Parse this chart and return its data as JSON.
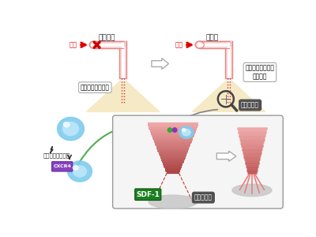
{
  "bg_color": "#ffffff",
  "text_blood_occlusion": "血管閉塞",
  "text_reperfusion": "再灘流",
  "text_blood_flow": "血流",
  "text_fine_vessel_damage": "細かい血管の障害",
  "text_fine_vessel_continued": "細かい血管が持続\nして障害",
  "text_hypoxia_region": "低酸素領域",
  "text_hypoxia_stimulus": "低酸素・低體刺激",
  "text_cxcr4": "CXCR4",
  "text_sdf1": "SDF-1",
  "vessel_color": "#e88080",
  "vessel_fill": "#f5c0c0",
  "vessel_inner": "#ffffff",
  "yellow_fill": "#f5e8c0",
  "cell_color": "#80ccee",
  "cell_inner": "#b0e0f8",
  "arrow_red": "#dd0000",
  "arrow_gray": "#999999",
  "label_dark_bg": "#505050",
  "green_label_bg": "#1a8020",
  "box_bg": "#f5f5f5",
  "box_border": "#999999",
  "cone_top_color": "#f0a8a8",
  "cone_bot_color": "#cc5555",
  "dashed_red": "#cc3333",
  "green_arrow": "#55aa55"
}
